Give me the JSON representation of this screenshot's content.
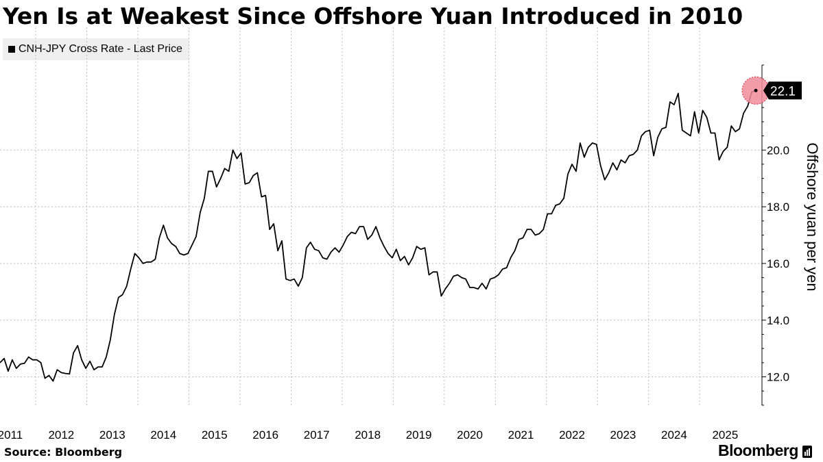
{
  "title": "Yen Is at Weakest Since Offshore Yuan Introduced in 2010",
  "source": "Source: Bloomberg",
  "brand": "Bloomberg",
  "colors": {
    "line": "#000000",
    "grid": "#bdbdbd",
    "highlight": "#f08c9a",
    "legend_bg": "#efefef"
  },
  "chart_data": {
    "type": "line",
    "title": "Yen Is at Weakest Since Offshore Yuan Introduced in 2010",
    "ylabel": "Offshore yuan per yen",
    "xlabel": "",
    "series": [
      {
        "name": "CNH-JPY Cross Rate - Last Price",
        "x": [
          2010.8,
          2010.88,
          2010.96,
          2011.04,
          2011.12,
          2011.2,
          2011.28,
          2011.36,
          2011.44,
          2011.52,
          2011.6,
          2011.68,
          2011.76,
          2011.84,
          2011.92,
          2012.0,
          2012.08,
          2012.16,
          2012.24,
          2012.32,
          2012.4,
          2012.48,
          2012.56,
          2012.64,
          2012.72,
          2012.8,
          2012.88,
          2012.96,
          2013.04,
          2013.12,
          2013.2,
          2013.28,
          2013.36,
          2013.44,
          2013.52,
          2013.6,
          2013.68,
          2013.76,
          2013.84,
          2013.92,
          2014.0,
          2014.08,
          2014.16,
          2014.24,
          2014.32,
          2014.4,
          2014.48,
          2014.56,
          2014.64,
          2014.72,
          2014.8,
          2014.88,
          2014.96,
          2015.04,
          2015.12,
          2015.2,
          2015.28,
          2015.36,
          2015.44,
          2015.52,
          2015.6,
          2015.68,
          2015.76,
          2015.84,
          2015.92,
          2016.0,
          2016.08,
          2016.16,
          2016.24,
          2016.32,
          2016.4,
          2016.48,
          2016.56,
          2016.64,
          2016.72,
          2016.8,
          2016.88,
          2016.96,
          2017.04,
          2017.12,
          2017.2,
          2017.28,
          2017.36,
          2017.44,
          2017.52,
          2017.6,
          2017.68,
          2017.76,
          2017.84,
          2017.92,
          2018.0,
          2018.08,
          2018.16,
          2018.24,
          2018.32,
          2018.4,
          2018.48,
          2018.56,
          2018.64,
          2018.72,
          2018.8,
          2018.88,
          2018.96,
          2019.04,
          2019.12,
          2019.2,
          2019.28,
          2019.36,
          2019.44,
          2019.52,
          2019.6,
          2019.68,
          2019.76,
          2019.84,
          2019.92,
          2020.0,
          2020.08,
          2020.16,
          2020.24,
          2020.32,
          2020.4,
          2020.48,
          2020.56,
          2020.64,
          2020.72,
          2020.8,
          2020.88,
          2020.96,
          2021.04,
          2021.12,
          2021.2,
          2021.28,
          2021.36,
          2021.44,
          2021.52,
          2021.6,
          2021.68,
          2021.76,
          2021.84,
          2021.92,
          2022.0,
          2022.08,
          2022.16,
          2022.24,
          2022.32,
          2022.4,
          2022.48,
          2022.56,
          2022.64,
          2022.72,
          2022.8,
          2022.88,
          2022.96,
          2023.04,
          2023.12,
          2023.2,
          2023.28,
          2023.36,
          2023.44,
          2023.52,
          2023.6,
          2023.68,
          2023.76,
          2023.84,
          2023.92,
          2024.0,
          2024.08,
          2024.16,
          2024.24,
          2024.32,
          2024.4,
          2024.48,
          2024.56,
          2024.64,
          2024.72,
          2024.8,
          2024.88,
          2024.96,
          2025.04,
          2025.12,
          2025.2,
          2025.28,
          2025.36,
          2025.44,
          2025.52,
          2025.6
        ],
        "values": [
          12.5,
          12.65,
          12.2,
          12.6,
          12.3,
          12.45,
          12.48,
          12.7,
          12.6,
          12.6,
          12.5,
          11.95,
          12.05,
          11.85,
          12.25,
          12.15,
          12.12,
          12.1,
          12.85,
          13.1,
          12.6,
          12.3,
          12.55,
          12.25,
          12.35,
          12.35,
          12.7,
          13.3,
          14.2,
          14.8,
          14.9,
          15.2,
          15.8,
          16.35,
          16.2,
          16.0,
          16.05,
          16.05,
          16.15,
          16.9,
          17.35,
          16.9,
          16.7,
          16.6,
          16.35,
          16.3,
          16.35,
          16.65,
          16.95,
          17.8,
          18.3,
          19.25,
          19.25,
          18.7,
          19.0,
          19.35,
          19.25,
          20.0,
          19.7,
          19.9,
          18.8,
          18.85,
          19.1,
          19.2,
          18.35,
          18.4,
          17.2,
          17.4,
          16.45,
          16.8,
          15.45,
          15.4,
          15.45,
          15.2,
          15.5,
          16.55,
          16.75,
          16.5,
          16.45,
          16.2,
          16.15,
          16.4,
          16.55,
          16.4,
          16.65,
          16.95,
          17.1,
          17.05,
          17.3,
          17.3,
          16.85,
          17.0,
          17.3,
          16.9,
          16.6,
          16.35,
          16.2,
          16.5,
          16.1,
          16.25,
          15.95,
          16.2,
          16.6,
          16.5,
          16.55,
          15.6,
          15.7,
          15.7,
          14.85,
          15.1,
          15.3,
          15.55,
          15.6,
          15.5,
          15.45,
          15.15,
          15.15,
          15.1,
          15.3,
          15.1,
          15.45,
          15.5,
          15.6,
          15.8,
          15.85,
          16.2,
          16.45,
          16.85,
          16.9,
          17.2,
          17.2,
          17.0,
          17.05,
          17.2,
          17.75,
          17.75,
          18.05,
          18.1,
          18.3,
          19.15,
          19.5,
          19.25,
          20.25,
          19.75,
          20.1,
          20.25,
          20.2,
          19.45,
          18.95,
          19.2,
          19.55,
          19.3,
          19.65,
          19.55,
          19.8,
          19.85,
          20.0,
          20.5,
          20.65,
          20.7,
          19.8,
          20.45,
          20.75,
          20.8,
          21.7,
          21.6,
          22.0,
          20.7,
          20.6,
          20.5,
          21.35,
          20.6,
          21.4,
          21.15,
          20.6,
          20.6,
          19.65,
          19.95,
          20.1,
          20.85,
          20.65,
          20.75,
          21.3,
          21.55,
          22.05,
          22.1
        ]
      }
    ],
    "x_ticks": [
      "2011",
      "2012",
      "2013",
      "2014",
      "2015",
      "2016",
      "2017",
      "2018",
      "2019",
      "2020",
      "2021",
      "2022",
      "2023",
      "2024",
      "2025"
    ],
    "x_tick_values": [
      2011,
      2012,
      2013,
      2014,
      2015,
      2016,
      2017,
      2018,
      2019,
      2020,
      2021,
      2022,
      2023,
      2024,
      2025
    ],
    "y_ticks": [
      "12.0",
      "14.0",
      "16.0",
      "18.0",
      "20.0"
    ],
    "y_tick_values": [
      12,
      14,
      16,
      18,
      20
    ],
    "xlim": [
      2010.8,
      2025.72
    ],
    "ylim": [
      11.0,
      23.0
    ],
    "grid": true,
    "legend_position": "top-left",
    "last_value_label": "22.1"
  }
}
